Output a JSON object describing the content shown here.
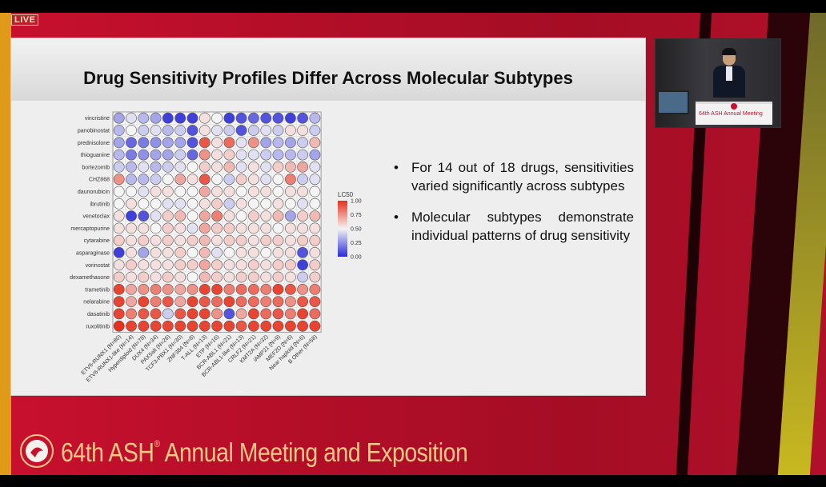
{
  "overlay": {
    "live_badge": "LIVE"
  },
  "slide": {
    "title": "Drug Sensitivity Profiles Differ Across Molecular Subtypes",
    "bullets": [
      "For 14 out of 18 drugs, sensitivities varied significantly across subtypes",
      "Molecular subtypes demonstrate individual patterns of drug sensitivity"
    ]
  },
  "video": {
    "podium_text": "64th ASH Annual Meeting"
  },
  "footer": {
    "event_prefix": "64th ASH",
    "registered_mark": "®",
    "event_suffix": " Annual Meeting and Exposition"
  },
  "colors": {
    "low": "#2b2bd9",
    "mid": "#f4f4f4",
    "high": "#e8301c",
    "brand_red": "#c8102e",
    "footer_text": "#f6c888"
  },
  "chart_data": {
    "type": "heatmap",
    "title": "",
    "legend_title": "LC50",
    "legend_ticks": [
      "1.00",
      "0.75",
      "0.50",
      "0.25",
      "0.00"
    ],
    "legend_placement": "right",
    "drugs": [
      "vincristine",
      "panobinostat",
      "prednisolone",
      "thioguanine",
      "bortezomib",
      "CHZ868",
      "daunorubicin",
      "ibrutinib",
      "venetoclax",
      "mercaptopurine",
      "cytarabine",
      "asparaginase",
      "vorinostat",
      "dexamethasone",
      "trametinib",
      "nelarabine",
      "dasatinib",
      "ruxolitinib"
    ],
    "subtypes": [
      "ETV6-RUNX1 (N=80)",
      "ETV6-RUNX1-like (N=14)",
      "Hyperdiploid (N=78)",
      "DUX4 (N=34)",
      "PAX5alt (N=26)",
      "TCF3-PBX1 (N=30)",
      "ZNF384 (N=8)",
      "T-ALL (N=13)",
      "ETP (N=16)",
      "BCR-ABL1 (N=21)",
      "BCR-ABL1-like (N=13)",
      "CRLF2 (N=21)",
      "KMT2A (N=32)",
      "iAMP21 (N=9)",
      "MEF2D (N=6)",
      "Near haploid (N=6)",
      "B Other (N=58)"
    ],
    "values": [
      [
        0.3,
        0.45,
        0.35,
        0.3,
        0.05,
        0.05,
        0.05,
        0.55,
        0.5,
        0.05,
        0.1,
        0.15,
        0.1,
        0.1,
        0.05,
        0.1,
        0.35
      ],
      [
        0.35,
        0.5,
        0.4,
        0.45,
        0.35,
        0.4,
        0.1,
        0.55,
        0.45,
        0.4,
        0.1,
        0.4,
        0.45,
        0.4,
        0.55,
        0.55,
        0.4
      ],
      [
        0.3,
        0.15,
        0.2,
        0.25,
        0.3,
        0.3,
        0.1,
        0.9,
        0.55,
        0.85,
        0.45,
        0.75,
        0.3,
        0.35,
        0.3,
        0.4,
        0.65
      ],
      [
        0.35,
        0.2,
        0.25,
        0.3,
        0.3,
        0.4,
        0.15,
        0.75,
        0.55,
        0.6,
        0.45,
        0.45,
        0.4,
        0.35,
        0.35,
        0.4,
        0.3
      ],
      [
        0.4,
        0.35,
        0.45,
        0.35,
        0.4,
        0.45,
        0.5,
        0.6,
        0.55,
        0.65,
        0.45,
        0.55,
        0.45,
        0.6,
        0.65,
        0.7,
        0.45
      ],
      [
        0.75,
        0.35,
        0.35,
        0.4,
        0.5,
        0.7,
        0.55,
        0.9,
        0.5,
        0.4,
        0.6,
        0.55,
        0.45,
        0.5,
        0.8,
        0.4,
        0.45
      ],
      [
        0.5,
        0.5,
        0.45,
        0.55,
        0.55,
        0.5,
        0.5,
        0.7,
        0.55,
        0.55,
        0.5,
        0.55,
        0.55,
        0.5,
        0.55,
        0.55,
        0.5
      ],
      [
        0.5,
        0.55,
        0.5,
        0.5,
        0.45,
        0.45,
        0.5,
        0.55,
        0.6,
        0.4,
        0.55,
        0.5,
        0.5,
        0.55,
        0.5,
        0.45,
        0.5
      ],
      [
        0.55,
        0.05,
        0.1,
        0.45,
        0.6,
        0.65,
        0.5,
        0.7,
        0.8,
        0.55,
        0.5,
        0.6,
        0.55,
        0.65,
        0.3,
        0.6,
        0.65
      ],
      [
        0.55,
        0.55,
        0.55,
        0.5,
        0.6,
        0.55,
        0.45,
        0.7,
        0.6,
        0.6,
        0.55,
        0.55,
        0.55,
        0.5,
        0.55,
        0.55,
        0.55
      ],
      [
        0.6,
        0.55,
        0.6,
        0.55,
        0.6,
        0.55,
        0.6,
        0.65,
        0.55,
        0.6,
        0.6,
        0.55,
        0.6,
        0.6,
        0.55,
        0.6,
        0.6
      ],
      [
        0.05,
        0.55,
        0.3,
        0.55,
        0.55,
        0.6,
        0.5,
        0.65,
        0.45,
        0.5,
        0.55,
        0.55,
        0.5,
        0.55,
        0.55,
        0.1,
        0.55
      ],
      [
        0.55,
        0.6,
        0.55,
        0.55,
        0.55,
        0.6,
        0.6,
        0.7,
        0.6,
        0.55,
        0.55,
        0.6,
        0.55,
        0.6,
        0.6,
        0.05,
        0.6
      ],
      [
        0.6,
        0.55,
        0.6,
        0.55,
        0.6,
        0.55,
        0.5,
        0.65,
        0.6,
        0.55,
        0.6,
        0.6,
        0.55,
        0.6,
        0.55,
        0.4,
        0.6
      ],
      [
        0.95,
        0.7,
        0.75,
        0.8,
        0.75,
        0.7,
        0.75,
        0.95,
        0.95,
        0.8,
        0.85,
        0.85,
        0.8,
        0.95,
        0.9,
        0.75,
        0.8
      ],
      [
        0.95,
        0.7,
        0.95,
        0.8,
        0.9,
        0.7,
        0.95,
        0.9,
        0.85,
        0.95,
        0.85,
        0.85,
        0.8,
        0.85,
        0.75,
        0.9,
        0.9
      ],
      [
        0.95,
        0.8,
        0.9,
        0.9,
        0.4,
        0.9,
        0.95,
        0.95,
        0.75,
        0.1,
        0.7,
        0.95,
        0.85,
        0.9,
        0.8,
        0.95,
        0.85
      ],
      [
        1.0,
        0.95,
        0.95,
        0.95,
        0.95,
        0.95,
        0.95,
        0.95,
        0.95,
        0.95,
        0.9,
        0.95,
        0.95,
        0.95,
        0.95,
        0.95,
        0.95
      ]
    ]
  }
}
